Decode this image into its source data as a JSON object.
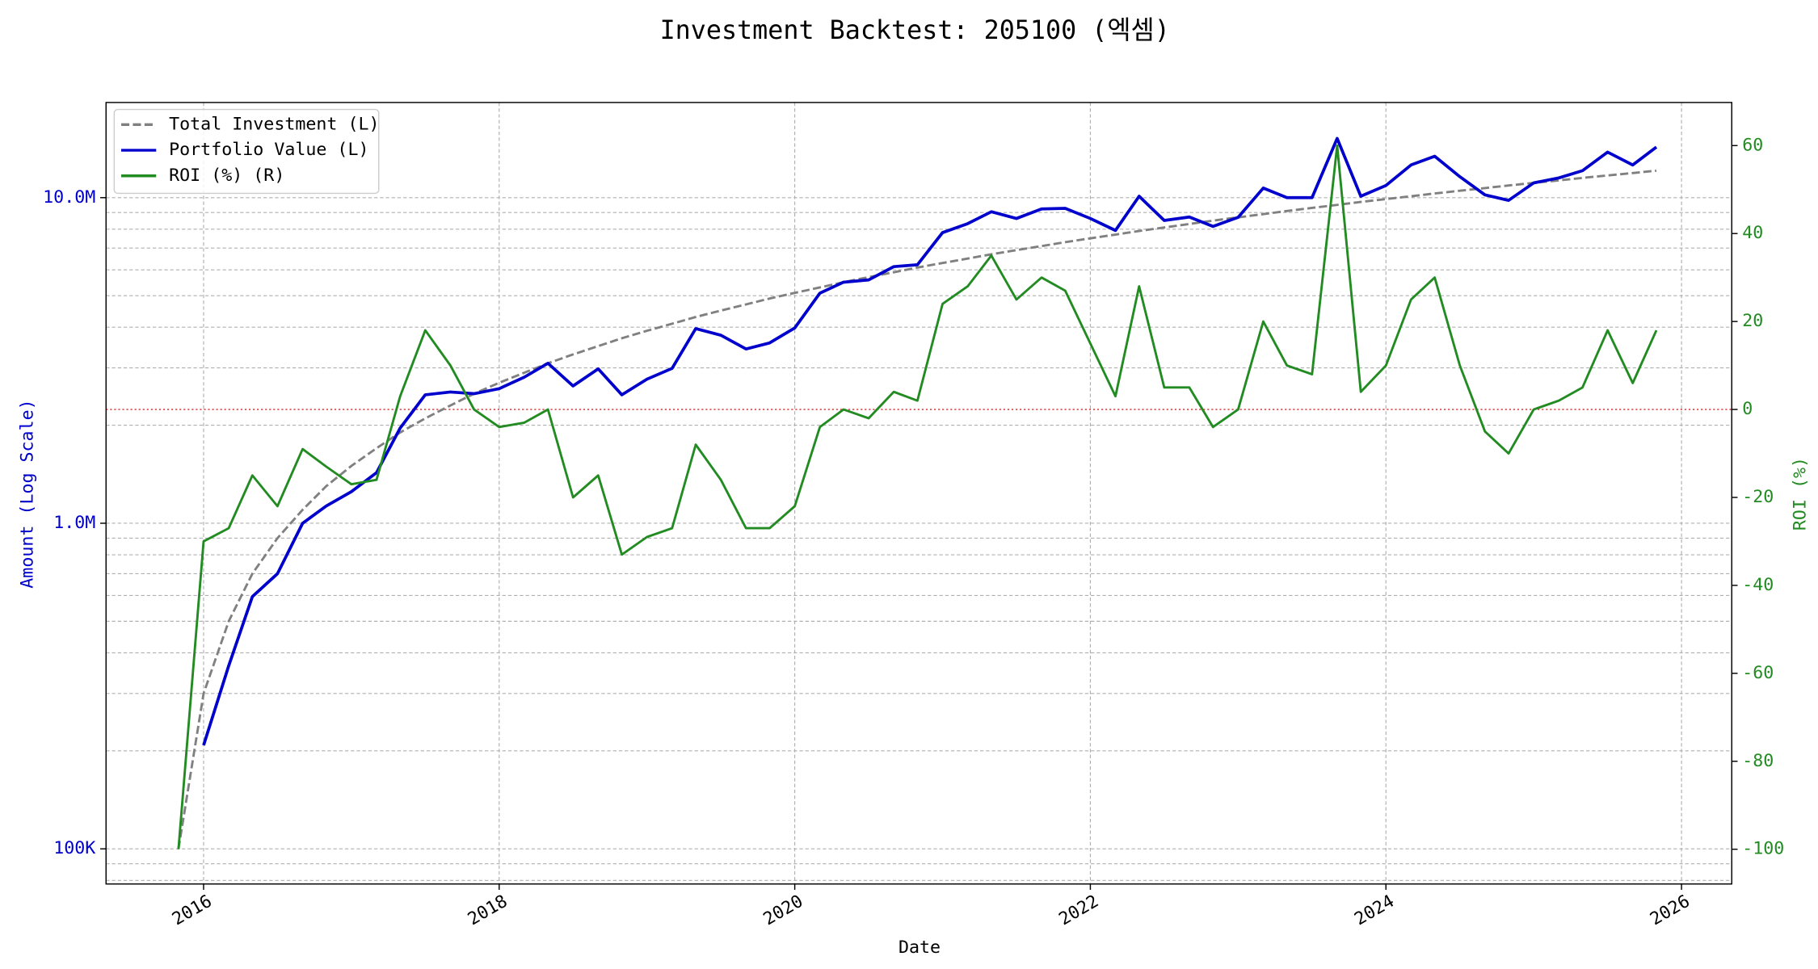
{
  "chart_data": {
    "type": "line",
    "title": "Investment Backtest: 205100 (엑셈)",
    "xlabel": "Date",
    "ylabel": "Amount (Log Scale)",
    "y2label": "ROI (%)",
    "x": [
      2015.83,
      2016.0,
      2016.17,
      2016.33,
      2016.5,
      2016.67,
      2016.83,
      2017.0,
      2017.17,
      2017.33,
      2017.5,
      2017.67,
      2017.83,
      2018.0,
      2018.17,
      2018.33,
      2018.5,
      2018.67,
      2018.83,
      2019.0,
      2019.17,
      2019.33,
      2019.5,
      2019.67,
      2019.83,
      2020.0,
      2020.17,
      2020.33,
      2020.5,
      2020.67,
      2020.83,
      2021.0,
      2021.17,
      2021.33,
      2021.5,
      2021.67,
      2021.83,
      2022.0,
      2022.17,
      2022.33,
      2022.5,
      2022.67,
      2022.83,
      2023.0,
      2023.17,
      2023.33,
      2023.5,
      2023.67,
      2023.83,
      2024.0,
      2024.17,
      2024.33,
      2024.5,
      2024.67,
      2024.83,
      2025.0,
      2025.17,
      2025.33,
      2025.5,
      2025.67,
      2025.83
    ],
    "series": [
      {
        "name": "Total Investment (L)",
        "color": "#808080",
        "dash": "dashed",
        "axis": "y",
        "values": [
          100000,
          300000,
          500000,
          700000,
          900000,
          1100000,
          1300000,
          1500000,
          1700000,
          1900000,
          2100000,
          2300000,
          2500000,
          2700000,
          2900000,
          3100000,
          3300000,
          3500000,
          3700000,
          3900000,
          4100000,
          4300000,
          4500000,
          4700000,
          4900000,
          5100000,
          5300000,
          5500000,
          5700000,
          5900000,
          6100000,
          6300000,
          6500000,
          6700000,
          6900000,
          7100000,
          7300000,
          7500000,
          7700000,
          7900000,
          8100000,
          8300000,
          8500000,
          8700000,
          8900000,
          9100000,
          9300000,
          9500000,
          9700000,
          9900000,
          10100000,
          10300000,
          10500000,
          10700000,
          10900000,
          11100000,
          11300000,
          11500000,
          11700000,
          11900000,
          12100000
        ]
      },
      {
        "name": "Portfolio Value (L)",
        "color": "#0000cd",
        "dash": "solid",
        "axis": "y",
        "values": [
          null,
          208000,
          365000,
          595000,
          700000,
          1000000,
          1130000,
          1250000,
          1430000,
          1960000,
          2480000,
          2530000,
          2500000,
          2590000,
          2810000,
          3100000,
          2640000,
          2980000,
          2480000,
          2770000,
          2990000,
          3960000,
          3780000,
          3430000,
          3580000,
          3980000,
          5090000,
          5500000,
          5590000,
          6140000,
          6220000,
          7810000,
          8320000,
          9050000,
          8630000,
          9230000,
          9270000,
          8630000,
          7930000,
          10100000,
          8510000,
          8720000,
          8160000,
          8700000,
          10700000,
          10000000,
          10000000,
          15200000,
          10100000,
          10900000,
          12600000,
          13400000,
          11600000,
          10200000,
          9810000,
          11100000,
          11500000,
          12100000,
          13800000,
          12600000,
          14300000
        ]
      },
      {
        "name": "ROI (%) (R)",
        "color": "#228b22",
        "dash": "solid",
        "axis": "y2",
        "values": [
          -100,
          -30,
          -27,
          -15,
          -22,
          -9,
          -13,
          -17,
          -16,
          3,
          18,
          10,
          0,
          -4,
          -3,
          0,
          -20,
          -15,
          -33,
          -29,
          -27,
          -8,
          -16,
          -27,
          -27,
          -22,
          -4,
          0,
          -2,
          4,
          2,
          24,
          28,
          35,
          25,
          30,
          27,
          15,
          3,
          28,
          5,
          5,
          -4,
          0,
          20,
          10,
          8,
          60,
          4,
          10,
          25,
          30,
          10,
          -5,
          -10,
          0,
          2,
          5,
          18,
          6,
          18
        ]
      }
    ],
    "xlim": [
      2015.34,
      2026.34
    ],
    "xticks": [
      2016,
      2018,
      2020,
      2022,
      2024,
      2026
    ],
    "yscale": "log",
    "ylim": [
      78000,
      19600000
    ],
    "yticks": [
      {
        "value": 100000,
        "label": "100K"
      },
      {
        "value": 1000000,
        "label": "1.0M"
      },
      {
        "value": 10000000,
        "label": "10.0M"
      }
    ],
    "yminorticks": [
      80000,
      90000,
      200000,
      300000,
      400000,
      500000,
      600000,
      700000,
      800000,
      900000,
      2000000,
      3000000,
      4000000,
      5000000,
      6000000,
      7000000,
      8000000,
      9000000
    ],
    "y2lim": [
      -107.9,
      69.8
    ],
    "y2ticks": [
      -100,
      -80,
      -60,
      -40,
      -20,
      0,
      20,
      40,
      60
    ],
    "ycolor": "#0000cd",
    "y2color": "#228b22",
    "hline": {
      "value": 0,
      "axis": "y2",
      "color": "#d62728"
    },
    "grid": true,
    "legend": "upper left"
  }
}
